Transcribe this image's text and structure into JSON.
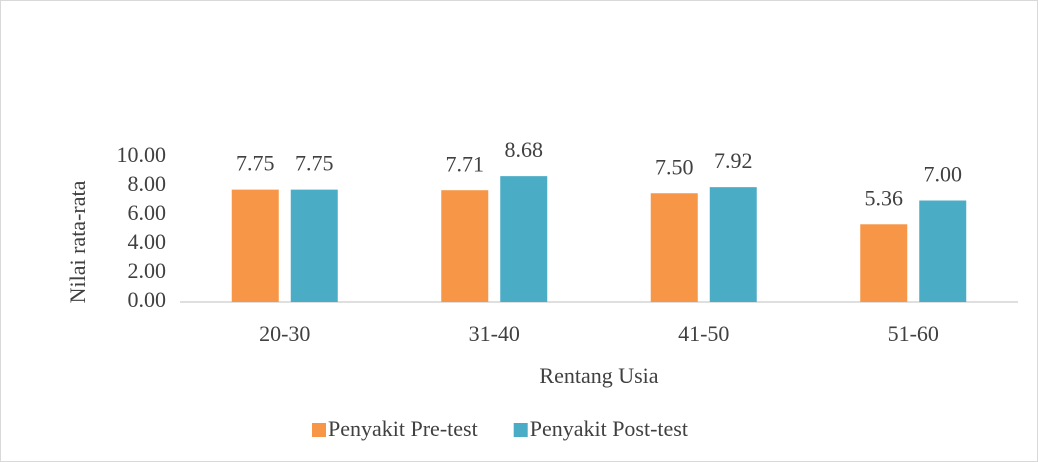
{
  "chart_data": {
    "type": "bar",
    "x_label": "Rentang Usia",
    "y_label": "Nilai rata-rata",
    "categories": [
      "20-30",
      "31-40",
      "41-50",
      "51-60"
    ],
    "series": [
      {
        "name": "Penyakit Pre-test",
        "color": "#f79646",
        "values": [
          7.75,
          7.71,
          7.5,
          5.36
        ],
        "value_labels": [
          "7.75",
          "7.71",
          "7.50",
          "5.36"
        ]
      },
      {
        "name": "Penyakit Post-test",
        "color": "#4bacc6",
        "values": [
          7.75,
          8.68,
          7.92,
          7.0
        ],
        "value_labels": [
          "7.75",
          "8.68",
          "7.92",
          "7.00"
        ]
      }
    ],
    "ylim": [
      0,
      10
    ],
    "yticks": [
      {
        "value": 0,
        "label": "0.00"
      },
      {
        "value": 2,
        "label": "2.00"
      },
      {
        "value": 4,
        "label": "4.00"
      },
      {
        "value": 6,
        "label": "6.00"
      },
      {
        "value": 8,
        "label": "8.00"
      },
      {
        "value": 10,
        "label": "10.00"
      }
    ],
    "grid": false,
    "legend": "bottom"
  }
}
